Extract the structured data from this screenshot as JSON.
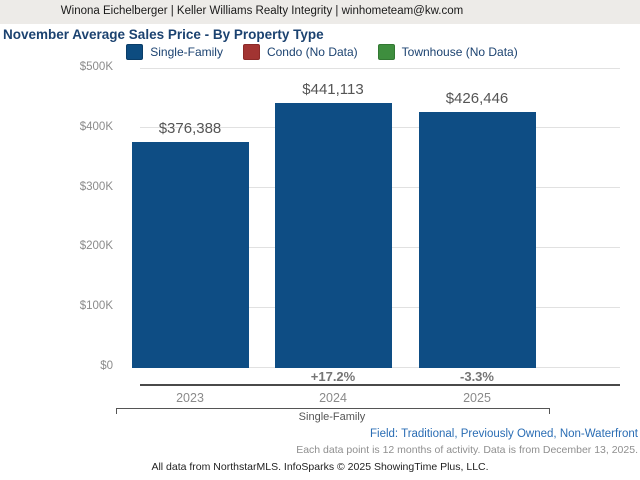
{
  "header": {
    "contact_line": "Winona Eichelberger | Keller Williams Realty Integrity | winhometeam@kw.com"
  },
  "title": "November Average Sales Price - By Property Type",
  "legend": [
    {
      "label": "Single-Family",
      "color": "#0d4c80",
      "border": "#0a3d68"
    },
    {
      "label": "Condo (No Data)",
      "color": "#a23432",
      "border": "#8c2a28"
    },
    {
      "label": "Townhouse (No Data)",
      "color": "#3e8e3e",
      "border": "#327832"
    }
  ],
  "chart_data": {
    "type": "bar",
    "title": "November Average Sales Price - By Property Type",
    "categories": [
      "2023",
      "2024",
      "2025"
    ],
    "series": [
      {
        "name": "Single-Family",
        "values": [
          376388,
          441113,
          426446
        ],
        "color": "#0e4d84"
      }
    ],
    "value_labels": [
      "$376,388",
      "$441,113",
      "$426,446"
    ],
    "pct_change_labels": [
      "",
      "+17.2%",
      "-3.3%"
    ],
    "y_tick_values": [
      0,
      100000,
      200000,
      300000,
      400000,
      500000
    ],
    "y_tick_labels": [
      "$0",
      "$100K",
      "$200K",
      "$300K",
      "$400K",
      "$500K"
    ],
    "ylim": [
      0,
      500000
    ],
    "xlabel": "",
    "ylabel": "",
    "grid": true,
    "legend_position": "top",
    "group_label": "Single-Family"
  },
  "footnotes": {
    "field_line": "Field: Traditional, Previously Owned, Non-Waterfront",
    "data_point_line": "Each data point is 12 months of activity. Data is from December 13, 2025.",
    "attribution_line": "All data from NorthstarMLS. InfoSparks © 2025 ShowingTime Plus, LLC."
  },
  "colors": {
    "header_background": "#edebe8",
    "title_text": "#1b4270",
    "bar_fill": "#0e4d84",
    "gridline": "#e1e1e1",
    "axis_line": "#4a4a4a",
    "field_link": "#2a6db4"
  }
}
